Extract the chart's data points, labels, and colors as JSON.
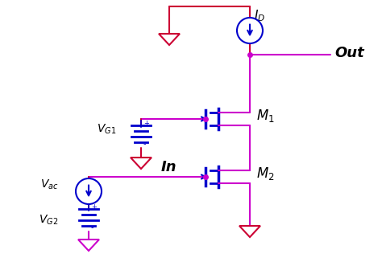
{
  "bg_color": "#ffffff",
  "red": "#cc0033",
  "blue": "#0000cc",
  "magenta": "#cc00cc",
  "figsize": [
    4.74,
    3.21
  ],
  "dpi": 100,
  "lw": 1.5
}
